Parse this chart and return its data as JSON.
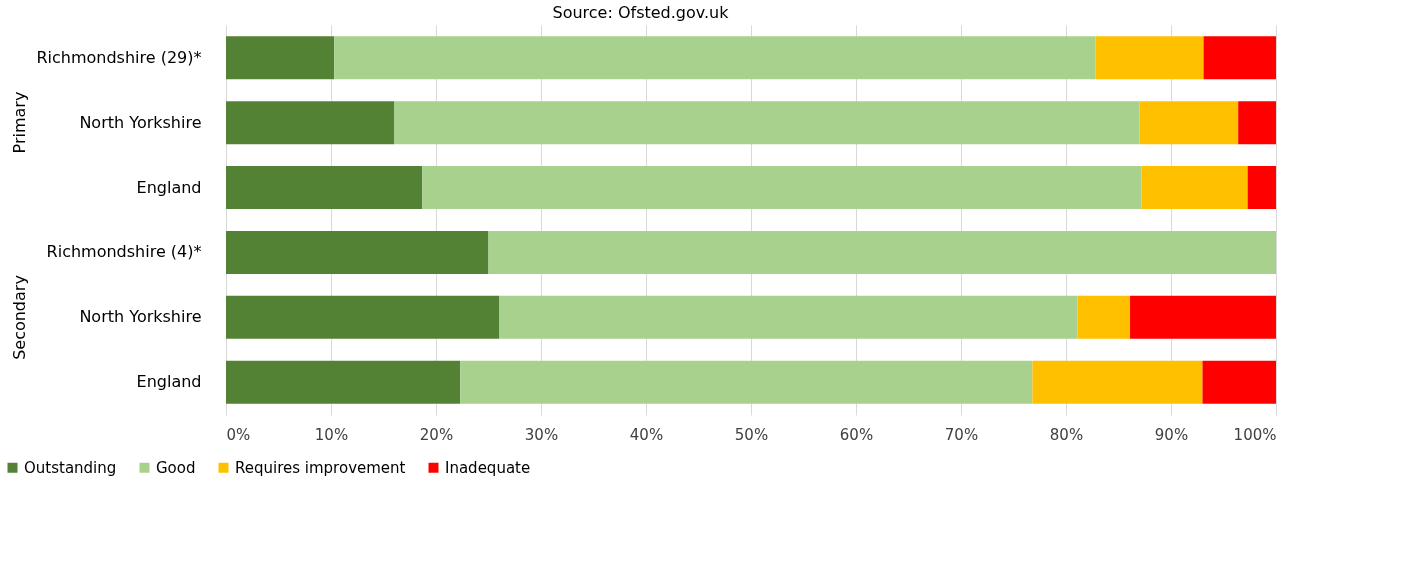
{
  "chart_data": {
    "type": "bar",
    "orientation": "horizontal",
    "stacked": true,
    "annotations": [
      "Source: Ofsted.gov.uk",
      "Primary",
      "Secondary"
    ],
    "categories": [
      "Richmondshire (29)*",
      "North Yorkshire",
      "England",
      "Richmondshire (4)*",
      "North Yorkshire",
      "England"
    ],
    "series": [
      {
        "name": "Outstanding",
        "color": "#548235",
        "values": [
          10.3,
          16,
          18.7,
          25,
          26,
          22.3
        ]
      },
      {
        "name": "Good",
        "color": "#a9d18e",
        "values": [
          72.5,
          71,
          68.5,
          75,
          55.1,
          54.5
        ]
      },
      {
        "name": "Requires improvement",
        "color": "#ffc000",
        "values": [
          10.3,
          9.4,
          10.1,
          0,
          5,
          16.2
        ]
      },
      {
        "name": "Inadequate",
        "color": "#ff0000",
        "values": [
          6.9,
          3.6,
          2.7,
          0,
          13.9,
          7
        ]
      }
    ],
    "xlim": [
      0,
      100
    ],
    "xticks": [
      {
        "value": 0,
        "label": "0%"
      },
      {
        "value": 10,
        "label": "10%"
      },
      {
        "value": 20,
        "label": "20%"
      },
      {
        "value": 30,
        "label": "30%"
      },
      {
        "value": 40,
        "label": "40%"
      },
      {
        "value": 50,
        "label": "50%"
      },
      {
        "value": 60,
        "label": "60%"
      },
      {
        "value": 70,
        "label": "70%"
      },
      {
        "value": 80,
        "label": "80%"
      },
      {
        "value": 90,
        "label": "90%"
      },
      {
        "value": 100,
        "label": "100%"
      }
    ],
    "grid": "x",
    "legend": "bottom"
  }
}
